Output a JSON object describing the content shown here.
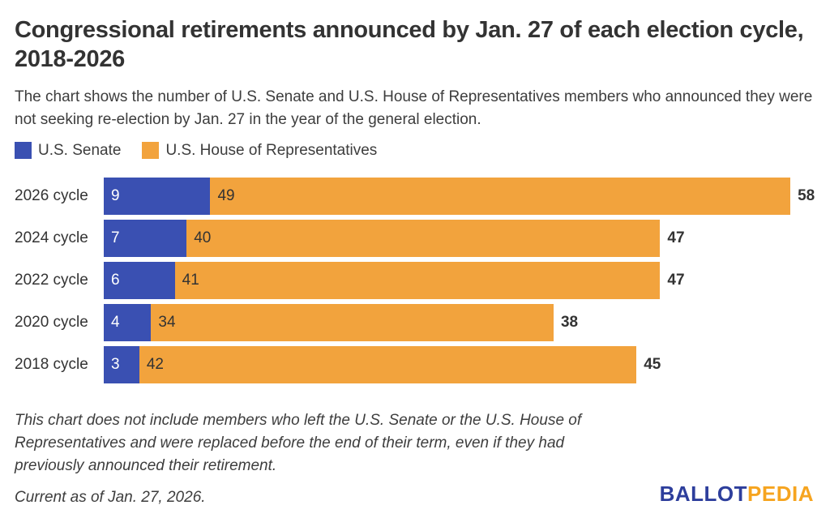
{
  "title": "Congressional retirements announced by Jan. 27 of each election cycle, 2018-2026",
  "subtitle": "The chart shows the number of U.S. Senate and U.S. House of Representatives members who announced they were not seeking re-election by Jan. 27 in the year of the general election.",
  "legend": {
    "senate": "U.S. Senate",
    "house": "U.S. House of Representatives"
  },
  "chart_data": {
    "type": "bar",
    "orientation": "horizontal",
    "stacked": true,
    "title": "Congressional retirements announced by Jan. 27 of each election cycle, 2018-2026",
    "categories": [
      "2026 cycle",
      "2024 cycle",
      "2022 cycle",
      "2020 cycle",
      "2018 cycle"
    ],
    "series": [
      {
        "name": "U.S. Senate",
        "color": "#3a50b2",
        "values": [
          9,
          7,
          6,
          4,
          3
        ]
      },
      {
        "name": "U.S. House of Representatives",
        "color": "#f2a33d",
        "values": [
          49,
          40,
          41,
          34,
          42
        ]
      }
    ],
    "totals": [
      58,
      47,
      47,
      38,
      45
    ],
    "xlim": [
      0,
      58
    ],
    "grid": false,
    "legend_position": "top-left",
    "value_labels": "inside-start",
    "total_labels": "outside-end"
  },
  "footnote": "This chart does not include members who left the U.S. Senate or the U.S. House of Representatives and were replaced before the end of their term, even if they had previously announced their retirement.",
  "current_as_of": "Current as of Jan. 27, 2026.",
  "logo": {
    "ballot": "BALLOT",
    "pedia": "PEDIA",
    "ballot_color": "#2d3e9c",
    "pedia_color": "#f6a41f"
  },
  "colors": {
    "senate_bar": "#3a50b2",
    "house_bar": "#f2a33d",
    "senate_value_text": "#ffffff",
    "house_value_text": "#333333",
    "text": "#333333",
    "background": "#ffffff"
  }
}
